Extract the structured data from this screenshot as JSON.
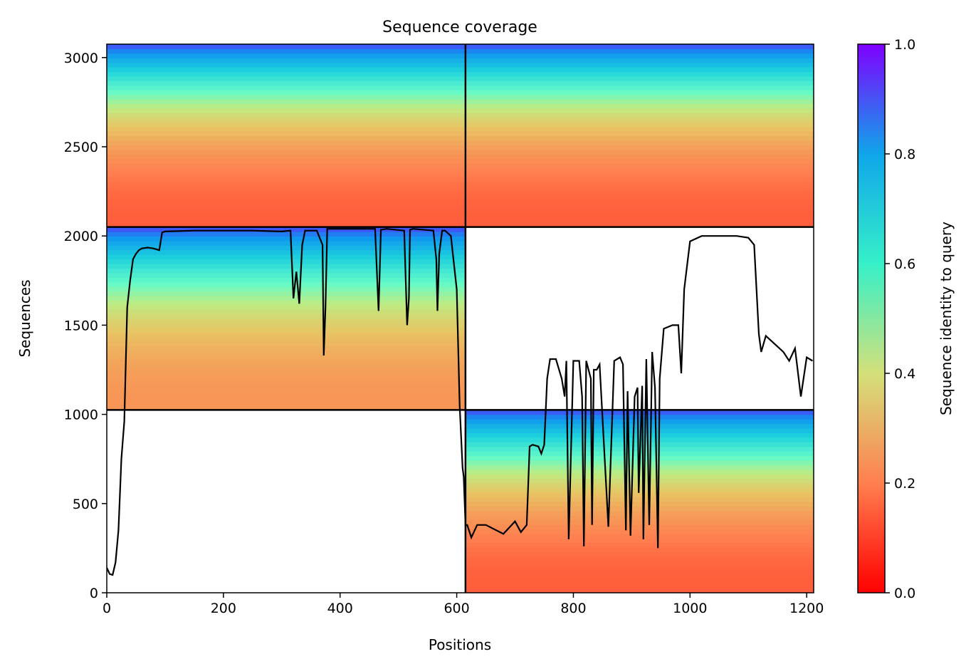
{
  "chart_data": {
    "type": "heatmap",
    "title": "Sequence coverage",
    "xlabel": "Positions",
    "ylabel": "Sequences",
    "xlim": [
      0,
      1212
    ],
    "ylim": [
      0,
      3075
    ],
    "xticks": [
      0,
      200,
      400,
      600,
      800,
      1000,
      1200
    ],
    "yticks": [
      0,
      500,
      1000,
      1500,
      2000,
      2500,
      3000
    ],
    "grid": false,
    "colorbar": {
      "label": "Sequence identity to query",
      "colormap": "rainbow",
      "range": [
        0,
        1
      ],
      "ticks": [
        0.0,
        0.2,
        0.4,
        0.6,
        0.8,
        1.0
      ]
    },
    "chain_boundaries": {
      "x": [
        615
      ],
      "y": [
        1025,
        2050
      ]
    },
    "blocks": [
      {
        "name": "chain-1-msa",
        "x": [
          0,
          615
        ],
        "y": [
          1025,
          2050
        ],
        "identity_top": 0.95,
        "identity_bottom": 0.25
      },
      {
        "name": "chain-1-pair",
        "x": [
          0,
          615
        ],
        "y": [
          2050,
          3075
        ],
        "identity_top": 0.95,
        "identity_bottom": 0.15
      },
      {
        "name": "chain-2-pair",
        "x": [
          615,
          1212
        ],
        "y": [
          2050,
          3075
        ],
        "identity_top": 0.95,
        "identity_bottom": 0.15
      },
      {
        "name": "chain-2-msa",
        "x": [
          615,
          1212
        ],
        "y": [
          0,
          1025
        ],
        "identity_top": 0.95,
        "identity_bottom": 0.15
      }
    ],
    "coverage": {
      "x": [
        0,
        5,
        10,
        15,
        20,
        25,
        30,
        35,
        40,
        45,
        50,
        55,
        60,
        70,
        80,
        90,
        95,
        100,
        150,
        200,
        250,
        300,
        315,
        320,
        325,
        330,
        335,
        340,
        360,
        370,
        372,
        375,
        378,
        390,
        400,
        460,
        466,
        468,
        470,
        480,
        510,
        515,
        518,
        520,
        525,
        560,
        565,
        567,
        570,
        575,
        580,
        590,
        600,
        605,
        610,
        612,
        615,
        618,
        625,
        635,
        650,
        680,
        700,
        710,
        720,
        725,
        730,
        740,
        745,
        750,
        755,
        760,
        770,
        780,
        785,
        788,
        792,
        800,
        810,
        815,
        818,
        822,
        830,
        832,
        835,
        840,
        845,
        860,
        870,
        880,
        885,
        890,
        893,
        898,
        905,
        910,
        912,
        918,
        920,
        925,
        930,
        935,
        940,
        945,
        948,
        955,
        970,
        980,
        985,
        990,
        1000,
        1020,
        1050,
        1080,
        1100,
        1110,
        1118,
        1122,
        1130,
        1150,
        1160,
        1170,
        1180,
        1190,
        1200,
        1210
      ],
      "y": [
        140,
        105,
        100,
        170,
        350,
        750,
        960,
        1600,
        1750,
        1870,
        1900,
        1920,
        1930,
        1935,
        1930,
        1920,
        2020,
        2025,
        2030,
        2030,
        2030,
        2025,
        2030,
        1650,
        1800,
        1620,
        1950,
        2030,
        2030,
        1950,
        1330,
        1600,
        2040,
        2040,
        2040,
        2040,
        1580,
        1800,
        2035,
        2040,
        2030,
        1500,
        1650,
        2035,
        2040,
        2030,
        1870,
        1580,
        1900,
        2030,
        2030,
        2000,
        1700,
        1050,
        700,
        650,
        380,
        380,
        310,
        380,
        380,
        330,
        400,
        340,
        380,
        820,
        830,
        820,
        780,
        830,
        1200,
        1310,
        1310,
        1200,
        1100,
        1300,
        300,
        1300,
        1300,
        1100,
        260,
        1300,
        1200,
        380,
        1250,
        1250,
        1280,
        370,
        1300,
        1320,
        1280,
        350,
        1130,
        320,
        1100,
        1150,
        560,
        1160,
        300,
        1310,
        380,
        1350,
        1150,
        250,
        1200,
        1480,
        1500,
        1500,
        1230,
        1700,
        1970,
        2000,
        2000,
        2000,
        1990,
        1950,
        1450,
        1350,
        1440,
        1380,
        1350,
        1300,
        1370,
        1100,
        1320,
        1300
      ]
    }
  }
}
